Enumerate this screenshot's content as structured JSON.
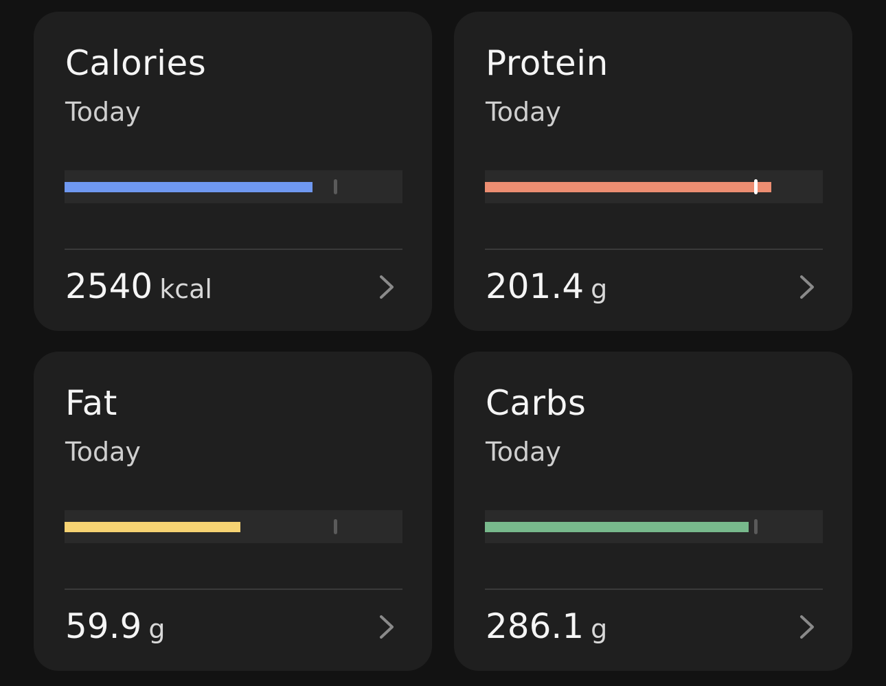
{
  "cards": [
    {
      "title": "Calories",
      "subtitle": "Today",
      "value": "2540",
      "unit": "kcal",
      "color": "#6f98f0",
      "fill_fraction": 0.734,
      "goal_fraction": 0.8,
      "goal_exceeded": false
    },
    {
      "title": "Protein",
      "subtitle": "Today",
      "value": "201.4",
      "unit": "g",
      "color": "#ec8e72",
      "fill_fraction": 0.848,
      "goal_fraction": 0.8,
      "goal_exceeded": true
    },
    {
      "title": "Fat",
      "subtitle": "Today",
      "value": "59.9",
      "unit": "g",
      "color": "#f6d373",
      "fill_fraction": 0.521,
      "goal_fraction": 0.8,
      "goal_exceeded": false
    },
    {
      "title": "Carbs",
      "subtitle": "Today",
      "value": "286.1",
      "unit": "g",
      "color": "#78b98c",
      "fill_fraction": 0.781,
      "goal_fraction": 0.8,
      "goal_exceeded": false
    }
  ],
  "icons": {
    "chevron": "chevron-right-icon"
  }
}
